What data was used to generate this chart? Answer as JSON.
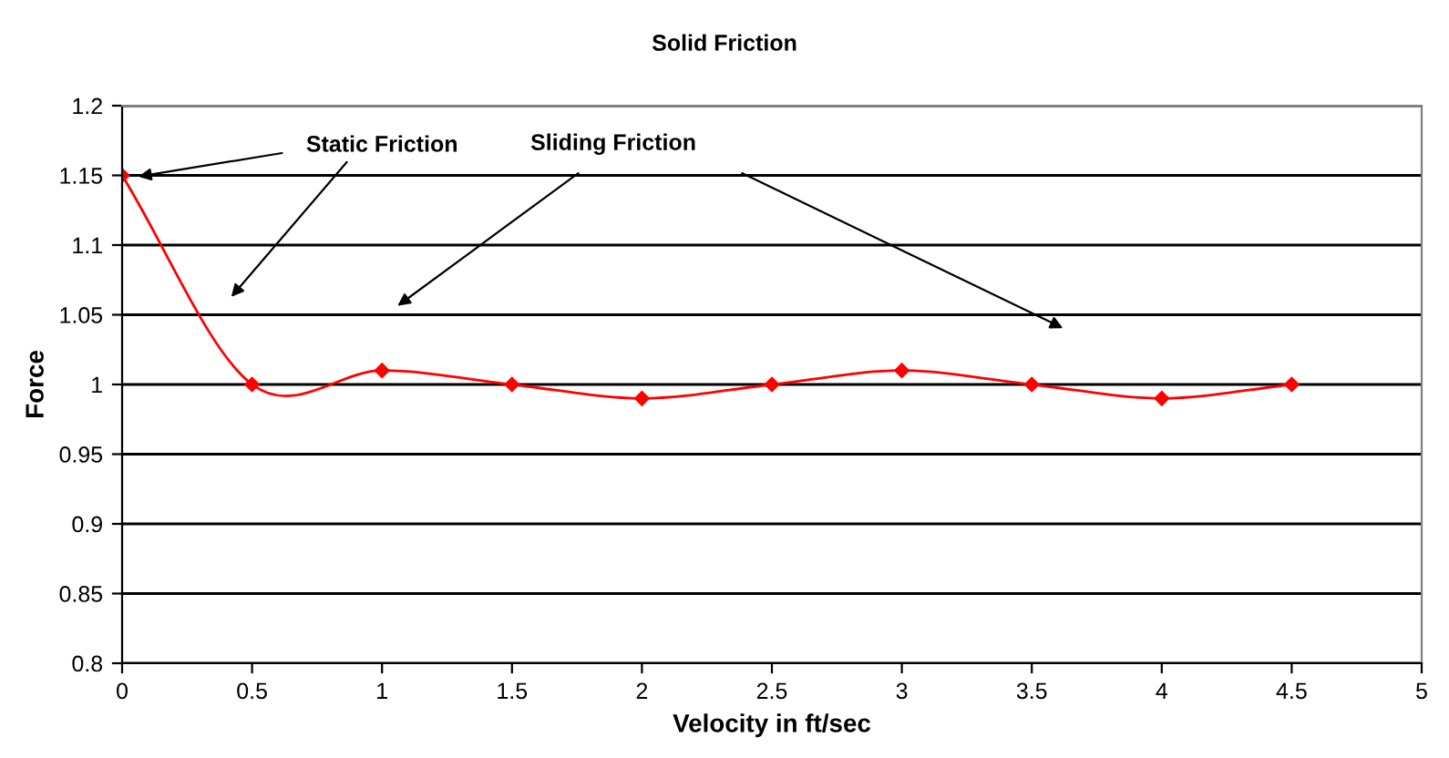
{
  "chart_data": {
    "type": "line",
    "title": "Solid Friction",
    "xlabel": "Velocity in ft/sec",
    "ylabel": "Force",
    "x": [
      0,
      0.5,
      1,
      1.5,
      2,
      2.5,
      3,
      3.5,
      4,
      4.5
    ],
    "series": [
      {
        "color": "#ff0000",
        "values": [
          1.15,
          1.0,
          1.01,
          1.0,
          0.99,
          1.0,
          1.01,
          1.0,
          0.99,
          1.0
        ]
      }
    ],
    "marker": "diamond",
    "line_style": "solid",
    "xlim": [
      0,
      5
    ],
    "xticks": [
      0,
      0.5,
      1,
      1.5,
      2,
      2.5,
      3,
      3.5,
      4,
      4.5,
      5
    ],
    "ylim": [
      0.8,
      1.2
    ],
    "yticks": [
      0.8,
      0.85,
      0.9,
      0.95,
      1,
      1.05,
      1.1,
      1.15,
      1.2
    ],
    "grid": "y",
    "annotations": [
      "Static Friction",
      "Sliding Friction"
    ]
  }
}
